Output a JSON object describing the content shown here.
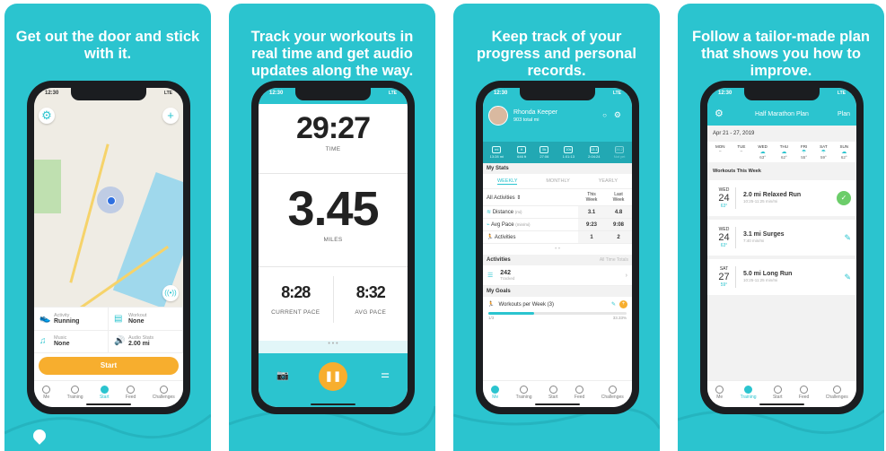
{
  "colors": {
    "brand": "#2bc4cf",
    "accent": "#f7ae2e",
    "success": "#6ccd6a"
  },
  "status_time": "12:30",
  "status_net": "LTE",
  "nav": [
    "Me",
    "Training",
    "Start",
    "Feed",
    "Challenges"
  ],
  "panel1": {
    "title": "Get out the door and stick with it.",
    "activity_label": "Activity",
    "activity_value": "Running",
    "workout_label": "Workout",
    "workout_value": "None",
    "music_label": "Music",
    "music_value": "None",
    "audio_label": "Audio Stats",
    "audio_value": "2.00 mi",
    "start": "Start"
  },
  "panel2": {
    "title": "Track your workouts in real time and get audio updates along the way.",
    "time": "29:27",
    "time_label": "TIME",
    "distance": "3.45",
    "distance_label": "MILES",
    "current_pace": "8:28",
    "current_pace_label": "CURRENT PACE",
    "avg_pace": "8:32",
    "avg_pace_label": "AVG PACE"
  },
  "panel3": {
    "title": "Keep track of your progress and personal records.",
    "user_name": "Rhonda Keeper",
    "total": "903 total mi",
    "badges": [
      {
        "icon": "mi",
        "value": "13:28 mi"
      },
      {
        "icon": "ft",
        "value": "646 ft"
      },
      {
        "icon": "5k",
        "value": "27:06"
      },
      {
        "icon": "10k",
        "value": "1:01:13"
      },
      {
        "icon": "13.1",
        "value": "2:04:24"
      },
      {
        "icon": "26.2",
        "value": "Not yet"
      }
    ],
    "my_stats": "My Stats",
    "tabs": [
      "WEEKLY",
      "MONTHLY",
      "YEARLY"
    ],
    "filter": "All Activities",
    "col_this": "This Week",
    "col_last": "Last Week",
    "rows": [
      {
        "label": "Distance",
        "unit": "(mi)",
        "this": "3.1",
        "last": "4.8"
      },
      {
        "label": "Avg Pace",
        "unit": "(min/mi)",
        "this": "9:23",
        "last": "9:08"
      },
      {
        "label": "Activities",
        "unit": "",
        "this": "1",
        "last": "2"
      }
    ],
    "activities_h": "Activities",
    "all_time": "All Time Totals",
    "tracked_count": "242",
    "tracked": "Tracked",
    "goals_h": "My Goals",
    "goal": "Workouts per Week (3)",
    "goal_progress": "1/3",
    "goal_pct": "33.33%",
    "goal_fraction": 0.3333
  },
  "panel4": {
    "title": "Follow a tailor-made plan that shows you how to improve.",
    "header": "Half Marathon Plan",
    "header_right": "Plan",
    "range": "Apr 21 - 27, 2019",
    "days": [
      {
        "d": "MON",
        "t": "–"
      },
      {
        "d": "TUE",
        "t": "–"
      },
      {
        "d": "WED",
        "t": "63°"
      },
      {
        "d": "THU",
        "t": "62°"
      },
      {
        "d": "FRI",
        "t": "55°"
      },
      {
        "d": "SAT",
        "t": "59°"
      },
      {
        "d": "SUN",
        "t": "62°"
      }
    ],
    "section": "Workouts This Week",
    "workouts": [
      {
        "dow": "WED",
        "day": "24",
        "temp": "63°",
        "name": "2.0 mi Relaxed Run",
        "pace": "10:25-11:25 min/mi",
        "done": true
      },
      {
        "dow": "WED",
        "day": "24",
        "temp": "63°",
        "name": "3.1 mi Surges",
        "pace": "7:40 min/mi",
        "done": false
      },
      {
        "dow": "SAT",
        "day": "27",
        "temp": "59°",
        "name": "5.0 mi Long Run",
        "pace": "10:25-11:25 min/mi",
        "done": false
      }
    ]
  }
}
